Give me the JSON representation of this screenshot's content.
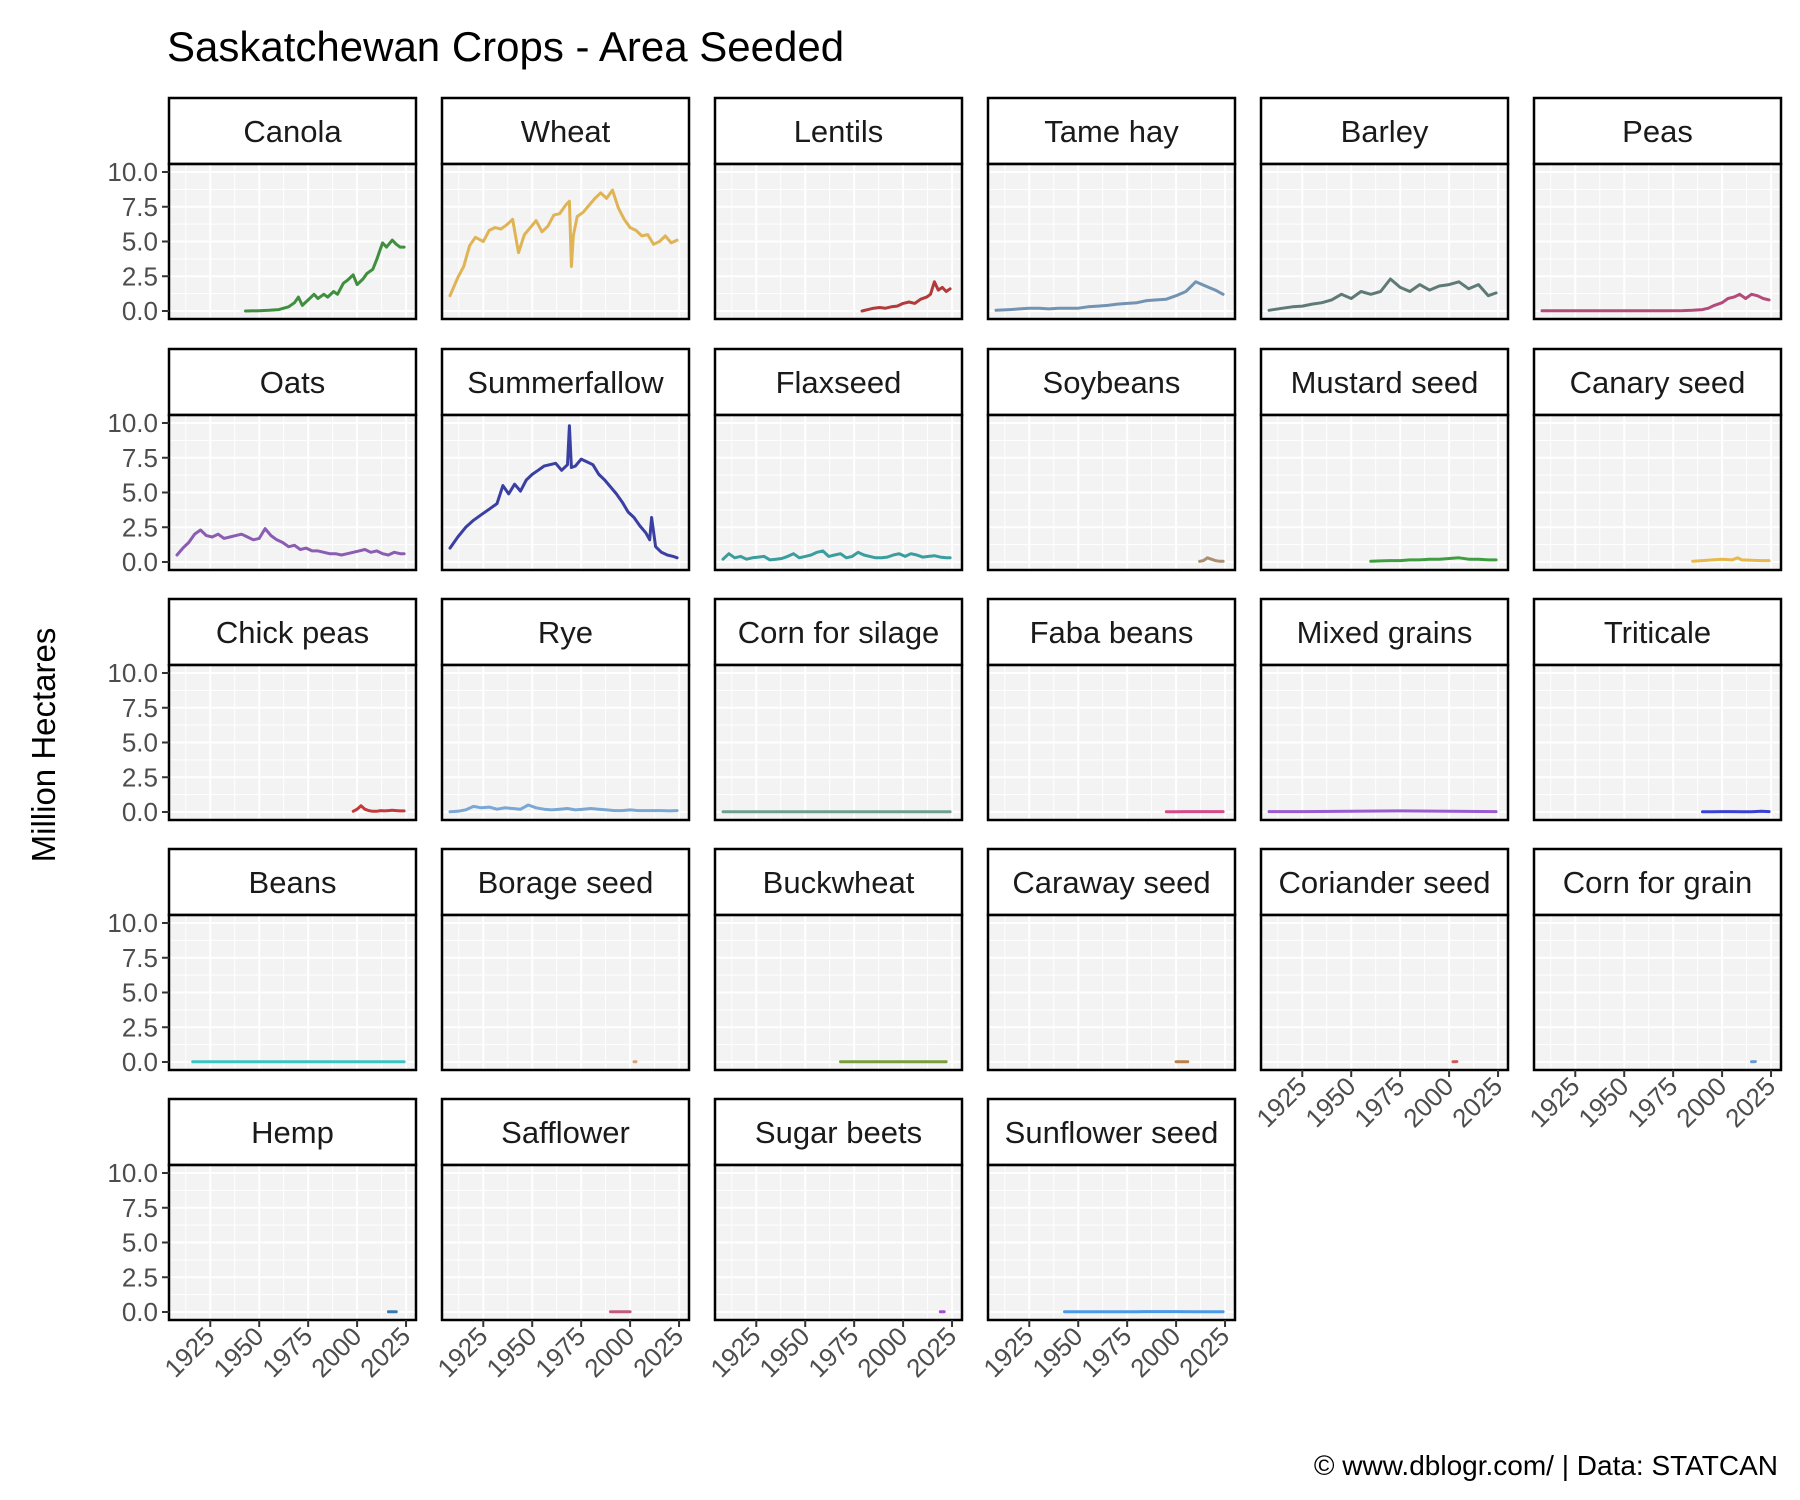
{
  "chart_data": {
    "type": "line",
    "title": "Saskatchewan Crops - Area Seeded",
    "ylabel": "Million Hectares",
    "xlabel": "",
    "caption": "© www.dblogr.com/  |  Data: STATCAN",
    "xlim": [
      1908,
      2026
    ],
    "ylim": [
      0,
      10
    ],
    "x_ticks": [
      "1925",
      "1950",
      "1975",
      "2000",
      "2025"
    ],
    "y_ticks": [
      "0.0",
      "2.5",
      "5.0",
      "7.5",
      "10.0"
    ],
    "grid": true,
    "facets": [
      {
        "name": "Canola",
        "color": "#3f8f3f",
        "x": [
          1943,
          1950,
          1955,
          1960,
          1965,
          1968,
          1970,
          1972,
          1975,
          1978,
          1980,
          1983,
          1985,
          1988,
          1990,
          1993,
          1995,
          1998,
          2000,
          2003,
          2005,
          2008,
          2010,
          2012,
          2013,
          2015,
          2018,
          2020,
          2022,
          2024
        ],
        "y": [
          0.0,
          0.02,
          0.05,
          0.1,
          0.3,
          0.6,
          1.0,
          0.4,
          0.8,
          1.2,
          0.9,
          1.2,
          1.0,
          1.4,
          1.2,
          2.0,
          2.2,
          2.6,
          1.9,
          2.3,
          2.7,
          3.0,
          3.7,
          4.5,
          4.9,
          4.6,
          5.1,
          4.8,
          4.6,
          4.6
        ]
      },
      {
        "name": "Wheat",
        "color": "#e0b455",
        "x": [
          1908,
          1912,
          1915,
          1918,
          1921,
          1925,
          1928,
          1931,
          1934,
          1937,
          1940,
          1943,
          1946,
          1949,
          1952,
          1955,
          1958,
          1961,
          1964,
          1967,
          1969,
          1970,
          1971,
          1973,
          1976,
          1979,
          1982,
          1985,
          1988,
          1991,
          1994,
          1997,
          2000,
          2003,
          2006,
          2009,
          2012,
          2015,
          2018,
          2021,
          2024
        ],
        "y": [
          1.1,
          2.4,
          3.2,
          4.7,
          5.3,
          5.0,
          5.8,
          6.0,
          5.9,
          6.2,
          6.6,
          4.2,
          5.5,
          6.0,
          6.5,
          5.7,
          6.1,
          6.9,
          7.0,
          7.6,
          7.9,
          3.2,
          5.4,
          6.8,
          7.1,
          7.6,
          8.1,
          8.5,
          8.1,
          8.7,
          7.4,
          6.6,
          6.0,
          5.8,
          5.4,
          5.5,
          4.8,
          5.0,
          5.4,
          4.9,
          5.1
        ]
      },
      {
        "name": "Lentils",
        "color": "#b33a3a",
        "x": [
          1979,
          1982,
          1985,
          1988,
          1991,
          1994,
          1997,
          2000,
          2003,
          2006,
          2009,
          2012,
          2014,
          2016,
          2018,
          2020,
          2022,
          2024
        ],
        "y": [
          0.0,
          0.1,
          0.2,
          0.25,
          0.2,
          0.3,
          0.35,
          0.55,
          0.65,
          0.55,
          0.85,
          1.0,
          1.2,
          2.1,
          1.5,
          1.7,
          1.4,
          1.6
        ]
      },
      {
        "name": "Tame hay",
        "color": "#7393b3",
        "x": [
          1908,
          1915,
          1920,
          1925,
          1930,
          1935,
          1940,
          1945,
          1950,
          1955,
          1960,
          1965,
          1970,
          1975,
          1980,
          1985,
          1990,
          1995,
          2000,
          2005,
          2010,
          2015,
          2020,
          2024
        ],
        "y": [
          0.05,
          0.1,
          0.15,
          0.2,
          0.2,
          0.15,
          0.2,
          0.2,
          0.2,
          0.3,
          0.35,
          0.4,
          0.5,
          0.55,
          0.6,
          0.75,
          0.8,
          0.85,
          1.1,
          1.4,
          2.1,
          1.8,
          1.5,
          1.2
        ]
      },
      {
        "name": "Barley",
        "color": "#5f7a76",
        "x": [
          1908,
          1915,
          1920,
          1925,
          1930,
          1935,
          1940,
          1945,
          1950,
          1955,
          1960,
          1965,
          1970,
          1975,
          1980,
          1985,
          1990,
          1995,
          2000,
          2005,
          2010,
          2015,
          2020,
          2024
        ],
        "y": [
          0.05,
          0.2,
          0.3,
          0.35,
          0.5,
          0.6,
          0.8,
          1.2,
          0.9,
          1.4,
          1.2,
          1.4,
          2.3,
          1.7,
          1.4,
          1.9,
          1.5,
          1.8,
          1.9,
          2.1,
          1.6,
          1.9,
          1.1,
          1.3
        ]
      },
      {
        "name": "Peas",
        "color": "#b34a7a",
        "x": [
          1908,
          1920,
          1930,
          1940,
          1950,
          1960,
          1970,
          1980,
          1985,
          1990,
          1993,
          1996,
          2000,
          2003,
          2006,
          2009,
          2012,
          2015,
          2018,
          2021,
          2024
        ],
        "y": [
          0.02,
          0.02,
          0.02,
          0.02,
          0.02,
          0.02,
          0.02,
          0.03,
          0.05,
          0.1,
          0.2,
          0.4,
          0.6,
          0.9,
          1.0,
          1.2,
          0.9,
          1.2,
          1.1,
          0.9,
          0.8
        ]
      },
      {
        "name": "Oats",
        "color": "#8a5db3",
        "x": [
          1908,
          1911,
          1914,
          1917,
          1920,
          1923,
          1926,
          1929,
          1932,
          1935,
          1938,
          1941,
          1944,
          1947,
          1950,
          1953,
          1956,
          1959,
          1962,
          1965,
          1968,
          1971,
          1974,
          1977,
          1980,
          1983,
          1986,
          1989,
          1992,
          1995,
          1998,
          2001,
          2004,
          2007,
          2010,
          2013,
          2016,
          2019,
          2022,
          2024
        ],
        "y": [
          0.5,
          1.0,
          1.4,
          2.0,
          2.3,
          1.9,
          1.8,
          2.0,
          1.7,
          1.8,
          1.9,
          2.0,
          1.8,
          1.6,
          1.7,
          2.4,
          1.9,
          1.6,
          1.4,
          1.1,
          1.2,
          0.9,
          1.0,
          0.8,
          0.8,
          0.7,
          0.6,
          0.6,
          0.5,
          0.6,
          0.7,
          0.8,
          0.9,
          0.7,
          0.8,
          0.6,
          0.5,
          0.7,
          0.6,
          0.6
        ]
      },
      {
        "name": "Summerfallow",
        "color": "#3a3fa3",
        "x": [
          1908,
          1912,
          1916,
          1920,
          1924,
          1928,
          1932,
          1935,
          1938,
          1941,
          1944,
          1947,
          1950,
          1953,
          1956,
          1959,
          1962,
          1965,
          1968,
          1969,
          1970,
          1972,
          1975,
          1978,
          1981,
          1984,
          1987,
          1990,
          1993,
          1996,
          1999,
          2002,
          2005,
          2008,
          2010,
          2011,
          2013,
          2016,
          2019,
          2022,
          2024
        ],
        "y": [
          1.0,
          1.8,
          2.5,
          3.0,
          3.4,
          3.8,
          4.2,
          5.5,
          4.9,
          5.6,
          5.1,
          5.9,
          6.3,
          6.6,
          6.9,
          7.0,
          7.1,
          6.6,
          7.0,
          9.8,
          6.8,
          6.9,
          7.4,
          7.2,
          7.0,
          6.3,
          5.9,
          5.4,
          4.9,
          4.3,
          3.6,
          3.2,
          2.6,
          2.1,
          1.6,
          3.2,
          1.1,
          0.7,
          0.5,
          0.4,
          0.3
        ]
      },
      {
        "name": "Flaxseed",
        "color": "#3a9e9e",
        "x": [
          1908,
          1911,
          1914,
          1917,
          1920,
          1923,
          1926,
          1929,
          1932,
          1935,
          1938,
          1941,
          1944,
          1947,
          1950,
          1953,
          1956,
          1959,
          1962,
          1965,
          1968,
          1971,
          1974,
          1977,
          1980,
          1983,
          1986,
          1989,
          1992,
          1995,
          1998,
          2001,
          2004,
          2007,
          2010,
          2013,
          2016,
          2019,
          2022,
          2024
        ],
        "y": [
          0.2,
          0.6,
          0.3,
          0.4,
          0.2,
          0.3,
          0.35,
          0.4,
          0.15,
          0.2,
          0.25,
          0.4,
          0.6,
          0.3,
          0.4,
          0.5,
          0.7,
          0.8,
          0.4,
          0.5,
          0.6,
          0.3,
          0.4,
          0.7,
          0.5,
          0.4,
          0.3,
          0.3,
          0.35,
          0.5,
          0.6,
          0.4,
          0.6,
          0.5,
          0.35,
          0.4,
          0.45,
          0.35,
          0.3,
          0.3
        ]
      },
      {
        "name": "Soybeans",
        "color": "#a89070",
        "x": [
          2012,
          2014,
          2016,
          2018,
          2020,
          2022,
          2024
        ],
        "y": [
          0.05,
          0.1,
          0.3,
          0.2,
          0.1,
          0.06,
          0.05
        ]
      },
      {
        "name": "Mustard seed",
        "color": "#3f9f3f",
        "x": [
          1960,
          1965,
          1970,
          1975,
          1980,
          1985,
          1990,
          1995,
          2000,
          2005,
          2010,
          2015,
          2020,
          2024
        ],
        "y": [
          0.05,
          0.08,
          0.1,
          0.1,
          0.15,
          0.15,
          0.2,
          0.2,
          0.25,
          0.3,
          0.2,
          0.2,
          0.15,
          0.15
        ]
      },
      {
        "name": "Canary seed",
        "color": "#e8b84a",
        "x": [
          1985,
          1990,
          1995,
          2000,
          2005,
          2008,
          2010,
          2015,
          2020,
          2024
        ],
        "y": [
          0.05,
          0.1,
          0.15,
          0.2,
          0.15,
          0.3,
          0.15,
          0.12,
          0.1,
          0.1
        ]
      },
      {
        "name": "Chick peas",
        "color": "#c43a3a",
        "x": [
          1998,
          2000,
          2002,
          2004,
          2006,
          2008,
          2010,
          2012,
          2014,
          2016,
          2018,
          2020,
          2022,
          2024
        ],
        "y": [
          0.05,
          0.2,
          0.45,
          0.2,
          0.1,
          0.05,
          0.05,
          0.1,
          0.08,
          0.1,
          0.12,
          0.1,
          0.08,
          0.08
        ]
      },
      {
        "name": "Rye",
        "color": "#7aa8d6",
        "x": [
          1908,
          1912,
          1916,
          1920,
          1924,
          1928,
          1932,
          1936,
          1940,
          1944,
          1948,
          1952,
          1956,
          1960,
          1964,
          1968,
          1972,
          1976,
          1980,
          1984,
          1988,
          1992,
          1996,
          2000,
          2004,
          2008,
          2012,
          2016,
          2020,
          2024
        ],
        "y": [
          0.02,
          0.05,
          0.15,
          0.4,
          0.3,
          0.35,
          0.2,
          0.3,
          0.25,
          0.2,
          0.5,
          0.3,
          0.2,
          0.15,
          0.2,
          0.25,
          0.15,
          0.2,
          0.25,
          0.2,
          0.15,
          0.1,
          0.1,
          0.15,
          0.1,
          0.1,
          0.1,
          0.1,
          0.08,
          0.1
        ]
      },
      {
        "name": "Corn for silage",
        "color": "#6f9f8f",
        "x": [
          1908,
          1925,
          1950,
          1975,
          2000,
          2024
        ],
        "y": [
          0.02,
          0.02,
          0.02,
          0.02,
          0.02,
          0.02
        ]
      },
      {
        "name": "Faba beans",
        "color": "#d64a8a",
        "x": [
          1995,
          2000,
          2005,
          2010,
          2015,
          2020,
          2024
        ],
        "y": [
          0.02,
          0.02,
          0.03,
          0.03,
          0.03,
          0.03,
          0.03
        ]
      },
      {
        "name": "Mixed grains",
        "color": "#9a5ad0",
        "x": [
          1908,
          1925,
          1950,
          1975,
          2000,
          2024
        ],
        "y": [
          0.03,
          0.03,
          0.05,
          0.08,
          0.05,
          0.03
        ]
      },
      {
        "name": "Triticale",
        "color": "#3a3fd6",
        "x": [
          1990,
          1995,
          2000,
          2005,
          2010,
          2015,
          2020,
          2024
        ],
        "y": [
          0.02,
          0.02,
          0.03,
          0.03,
          0.02,
          0.02,
          0.05,
          0.03
        ]
      },
      {
        "name": "Beans",
        "color": "#3ac4c4",
        "x": [
          1916,
          1930,
          1950,
          1975,
          2000,
          2024
        ],
        "y": [
          0.02,
          0.02,
          0.02,
          0.02,
          0.02,
          0.02
        ]
      },
      {
        "name": "Borage seed",
        "color": "#e0a070",
        "x": [
          2002,
          2003
        ],
        "y": [
          0.02,
          0.02
        ]
      },
      {
        "name": "Buckwheat",
        "color": "#7a9f3a",
        "x": [
          1968,
          1980,
          1990,
          2000,
          2010,
          2022
        ],
        "y": [
          0.02,
          0.02,
          0.02,
          0.02,
          0.02,
          0.02
        ]
      },
      {
        "name": "Caraway seed",
        "color": "#b8804a",
        "x": [
          2000,
          2006
        ],
        "y": [
          0.02,
          0.02
        ]
      },
      {
        "name": "Coriander seed",
        "color": "#d05a5a",
        "x": [
          2002,
          2004
        ],
        "y": [
          0.02,
          0.03
        ]
      },
      {
        "name": "Corn for grain",
        "color": "#6a9ad6",
        "x": [
          2015,
          2017
        ],
        "y": [
          0.02,
          0.03
        ]
      },
      {
        "name": "Hemp",
        "color": "#3a7ab0",
        "x": [
          2016,
          2020
        ],
        "y": [
          0.02,
          0.02
        ]
      },
      {
        "name": "Safflower",
        "color": "#c45a7a",
        "x": [
          1990,
          1995,
          2000
        ],
        "y": [
          0.02,
          0.02,
          0.02
        ]
      },
      {
        "name": "Sugar beets",
        "color": "#a64ad6",
        "x": [
          2019,
          2021
        ],
        "y": [
          0.02,
          0.02
        ]
      },
      {
        "name": "Sunflower seed",
        "color": "#4a9ae8",
        "x": [
          1943,
          1960,
          1980,
          2000,
          2010,
          2024
        ],
        "y": [
          0.02,
          0.02,
          0.02,
          0.03,
          0.02,
          0.02
        ]
      }
    ]
  }
}
